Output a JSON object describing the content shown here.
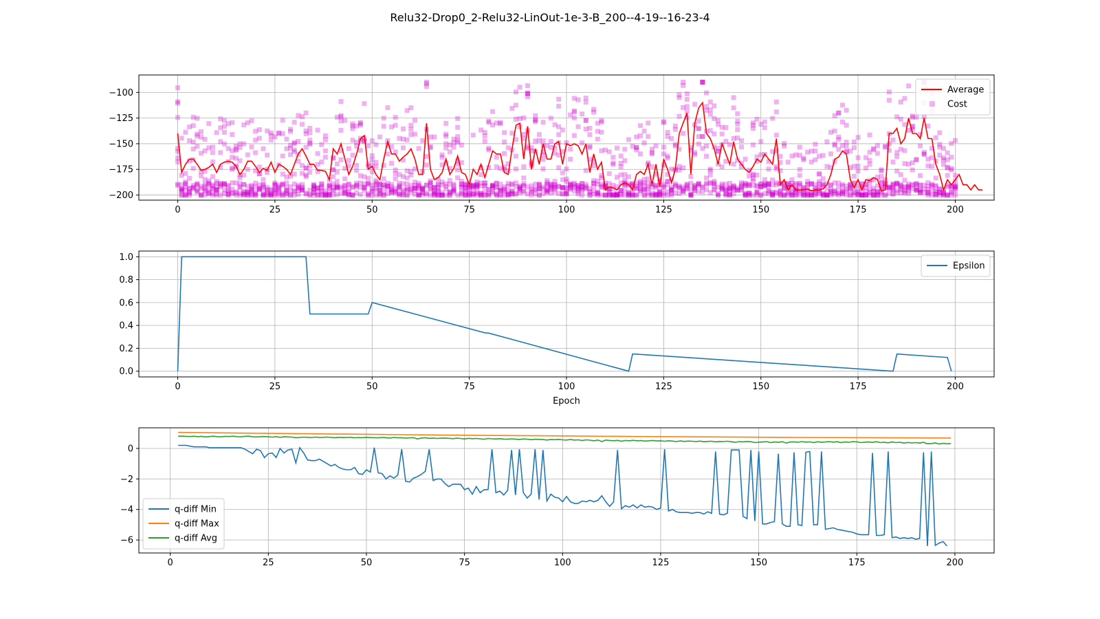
{
  "figure": {
    "title": "Relu32-Drop0_2-Relu32-LinOut-1e-3-B_200--4-19--16-23-4"
  },
  "chart_data": [
    {
      "type": "line",
      "id": "cost-panel",
      "xlim": [
        -10,
        210
      ],
      "ylim": [
        -205,
        -83
      ],
      "xticks": [
        0,
        25,
        50,
        75,
        100,
        125,
        150,
        175,
        200
      ],
      "yticks": [
        -100,
        -125,
        -150,
        -175,
        -200
      ],
      "xlabel": "",
      "ylabel": "",
      "grid": true,
      "legend_position": "top-right",
      "series": [
        {
          "name": "Average",
          "kind": "line",
          "color": "#ff0000",
          "x_start": 0,
          "x_step": 1,
          "values": [
            -140,
            -178,
            -170,
            -165,
            -165,
            -170,
            -176,
            -175,
            -173,
            -170,
            -178,
            -170,
            -168,
            -167,
            -168,
            -172,
            -180,
            -175,
            -167,
            -167,
            -172,
            -178,
            -174,
            -176,
            -168,
            -178,
            -170,
            -172,
            -175,
            -180,
            -170,
            -160,
            -155,
            -162,
            -170,
            -170,
            -176,
            -176,
            -177,
            -185,
            -155,
            -160,
            -150,
            -165,
            -180,
            -172,
            -160,
            -145,
            -142,
            -175,
            -172,
            -180,
            -185,
            -165,
            -148,
            -160,
            -160,
            -167,
            -163,
            -160,
            -155,
            -165,
            -180,
            -180,
            -130,
            -175,
            -185,
            -183,
            -178,
            -165,
            -180,
            -174,
            -162,
            -178,
            -180,
            -190,
            -175,
            -180,
            -170,
            -183,
            -170,
            -157,
            -160,
            -160,
            -178,
            -180,
            -155,
            -132,
            -130,
            -165,
            -133,
            -175,
            -155,
            -170,
            -150,
            -165,
            -165,
            -150,
            -148,
            -170,
            -150,
            -152,
            -150,
            -152,
            -160,
            -150,
            -178,
            -160,
            -175,
            -168,
            -195,
            -192,
            -193,
            -195,
            -190,
            -188,
            -190,
            -195,
            -180,
            -177,
            -180,
            -170,
            -190,
            -170,
            -192,
            -165,
            -175,
            -188,
            -175,
            -140,
            -130,
            -120,
            -180,
            -130,
            -115,
            -110,
            -140,
            -145,
            -155,
            -170,
            -150,
            -160,
            -170,
            -148,
            -165,
            -170,
            -175,
            -178,
            -172,
            -165,
            -168,
            -160,
            -165,
            -170,
            -145,
            -190,
            -185,
            -195,
            -190,
            -195,
            -195,
            -195,
            -194,
            -196,
            -195,
            -195,
            -194,
            -190,
            -180,
            -165,
            -163,
            -157,
            -160,
            -185,
            -193,
            -185,
            -195,
            -185,
            -186,
            -183,
            -185,
            -196,
            -195,
            -140,
            -140,
            -135,
            -150,
            -145,
            -125,
            -140,
            -140,
            -145,
            -125,
            -145,
            -145,
            -170,
            -180,
            -195,
            -185,
            -190,
            -185,
            -180,
            -190,
            -190,
            -195,
            -190,
            -195,
            -195
          ]
        },
        {
          "name": "Cost",
          "kind": "scatter",
          "color": "#cc00cc",
          "marker": "square",
          "alpha": 0.3,
          "per_epoch_min": -200,
          "per_epoch_max": -90
        }
      ]
    },
    {
      "type": "line",
      "id": "epsilon-panel",
      "xlim": [
        -10,
        210
      ],
      "ylim": [
        -0.05,
        1.05
      ],
      "xticks": [
        0,
        25,
        50,
        75,
        100,
        125,
        150,
        175,
        200
      ],
      "yticks": [
        0.0,
        0.2,
        0.4,
        0.6,
        0.8,
        1.0
      ],
      "ytick_labels": [
        "0.0",
        "0.2",
        "0.4",
        "0.6",
        "0.8",
        "1.0"
      ],
      "xlabel": "Epoch",
      "ylabel": "",
      "grid": true,
      "legend_position": "top-right",
      "series": [
        {
          "name": "Epsilon",
          "color": "#1f77b4",
          "points": [
            [
              0,
              0.0
            ],
            [
              1,
              1.0
            ],
            [
              33,
              1.0
            ],
            [
              34,
              0.5
            ],
            [
              49,
              0.5
            ],
            [
              50,
              0.6
            ],
            [
              79,
              0.335
            ],
            [
              80,
              0.333
            ],
            [
              116,
              0.0
            ],
            [
              117,
              0.15
            ],
            [
              118,
              0.149
            ],
            [
              184,
              0.0
            ],
            [
              185,
              0.15
            ],
            [
              198,
              0.12
            ],
            [
              199,
              0.0
            ]
          ]
        }
      ]
    },
    {
      "type": "line",
      "id": "qdiff-panel",
      "xlim": [
        -8,
        210
      ],
      "ylim": [
        -6.85,
        1.35
      ],
      "xticks": [
        0,
        25,
        50,
        75,
        100,
        125,
        150,
        175,
        200
      ],
      "yticks": [
        0,
        -2,
        -4,
        -6
      ],
      "xlabel": "",
      "ylabel": "",
      "grid": true,
      "legend_position": "bottom-left",
      "series": [
        {
          "name": "q-diff Min",
          "color": "#1f77b4",
          "x_start": 2,
          "x_step": 1,
          "values": [
            0.2,
            0.2,
            0.2,
            0.15,
            0.1,
            0.1,
            0.1,
            0.1,
            0.05,
            0.05,
            0.05,
            0.05,
            0.05,
            0.05,
            0.05,
            0.05,
            0.05,
            -0.05,
            -0.2,
            -0.35,
            -0.05,
            -0.15,
            -0.6,
            -0.35,
            -0.3,
            -0.6,
            0.0,
            -0.3,
            -0.1,
            -0.05,
            -0.95,
            0.05,
            -0.3,
            -0.75,
            -0.8,
            -0.8,
            -0.7,
            -0.85,
            -1.0,
            -1.15,
            -1.05,
            -1.25,
            -1.35,
            -1.4,
            -1.4,
            -1.25,
            -1.65,
            -1.7,
            -1.4,
            -1.55,
            0.05,
            -1.6,
            -1.65,
            -2.0,
            -1.8,
            -1.95,
            -1.75,
            -0.05,
            -2.15,
            -2.2,
            -1.95,
            -1.85,
            -1.7,
            -1.5,
            -0.05,
            -2.1,
            -2.0,
            -2.0,
            -2.3,
            -2.5,
            -2.35,
            -2.35,
            -2.35,
            -2.7,
            -2.6,
            -3.0,
            -2.5,
            -2.9,
            -2.7,
            -2.7,
            -0.05,
            -2.9,
            -2.8,
            -3.05,
            -2.75,
            -0.1,
            -3.05,
            -0.05,
            -2.9,
            -3.25,
            -3.0,
            -0.05,
            -3.35,
            -0.1,
            -3.45,
            -3.0,
            -3.2,
            -3.25,
            -3.5,
            -3.15,
            -3.5,
            -3.6,
            -3.6,
            -3.45,
            -3.5,
            -3.4,
            -3.5,
            -3.4,
            -3.1,
            -3.5,
            -3.8,
            -3.5,
            -0.1,
            -3.95,
            -3.75,
            -3.85,
            -3.7,
            -3.9,
            -3.7,
            -3.85,
            -3.8,
            -3.85,
            -4.0,
            -3.9,
            -0.05,
            -4.1,
            -4.0,
            -4.15,
            -4.2,
            -4.2,
            -4.2,
            -4.25,
            -4.2,
            -4.2,
            -4.3,
            -4.15,
            -4.25,
            -0.2,
            -4.3,
            -4.35,
            -4.25,
            -0.1,
            -0.1,
            -0.1,
            -4.45,
            -4.6,
            -0.1,
            -4.75,
            -0.2,
            -4.95,
            -4.95,
            -4.85,
            -4.8,
            -0.35,
            -4.95,
            -5.1,
            -5.1,
            -0.25,
            -5.0,
            -5.05,
            -0.25,
            -0.2,
            -5.0,
            -5.0,
            -0.2,
            -5.3,
            -5.25,
            -5.2,
            -5.3,
            -5.35,
            -5.4,
            -5.45,
            -5.5,
            -5.6,
            -5.65,
            -5.65,
            -5.65,
            -0.3,
            -5.7,
            -5.7,
            -5.65,
            -0.2,
            -5.85,
            -5.8,
            -5.9,
            -5.85,
            -5.9,
            -5.85,
            -5.95,
            -5.9,
            -0.25,
            -6.4,
            -0.2,
            -6.35,
            -6.2,
            -6.1,
            -6.4
          ]
        },
        {
          "name": "q-diff Max",
          "color": "#ff7f0e",
          "points": [
            [
              2,
              1.05
            ],
            [
              20,
              1.0
            ],
            [
              40,
              0.95
            ],
            [
              60,
              0.9
            ],
            [
              80,
              0.85
            ],
            [
              100,
              0.82
            ],
            [
              120,
              0.78
            ],
            [
              140,
              0.75
            ],
            [
              160,
              0.72
            ],
            [
              180,
              0.7
            ],
            [
              199,
              0.68
            ]
          ]
        },
        {
          "name": "q-diff Avg",
          "color": "#2ca02c",
          "x_start": 2,
          "x_step": 1,
          "values": [
            0.8,
            0.8,
            0.79,
            0.78,
            0.8,
            0.77,
            0.79,
            0.75,
            0.78,
            0.8,
            0.77,
            0.76,
            0.79,
            0.78,
            0.8,
            0.77,
            0.76,
            0.79,
            0.8,
            0.76,
            0.75,
            0.77,
            0.78,
            0.76,
            0.74,
            0.77,
            0.73,
            0.76,
            0.75,
            0.74,
            0.7,
            0.72,
            0.74,
            0.73,
            0.72,
            0.74,
            0.72,
            0.73,
            0.74,
            0.72,
            0.7,
            0.73,
            0.71,
            0.72,
            0.73,
            0.69,
            0.72,
            0.7,
            0.73,
            0.71,
            0.7,
            0.69,
            0.72,
            0.7,
            0.68,
            0.72,
            0.69,
            0.7,
            0.67,
            0.69,
            0.7,
            0.62,
            0.68,
            0.7,
            0.66,
            0.68,
            0.65,
            0.67,
            0.68,
            0.66,
            0.64,
            0.67,
            0.65,
            0.62,
            0.66,
            0.64,
            0.65,
            0.63,
            0.6,
            0.65,
            0.63,
            0.62,
            0.64,
            0.61,
            0.6,
            0.63,
            0.6,
            0.58,
            0.62,
            0.6,
            0.57,
            0.6,
            0.59,
            0.58,
            0.55,
            0.58,
            0.57,
            0.59,
            0.56,
            0.55,
            0.58,
            0.55,
            0.56,
            0.52,
            0.56,
            0.54,
            0.5,
            0.55,
            0.45,
            0.55,
            0.52,
            0.5,
            0.53,
            0.47,
            0.52,
            0.5,
            0.53,
            0.5,
            0.51,
            0.48,
            0.5,
            0.52,
            0.49,
            0.5,
            0.47,
            0.5,
            0.48,
            0.45,
            0.49,
            0.46,
            0.48,
            0.47,
            0.45,
            0.48,
            0.44,
            0.46,
            0.47,
            0.43,
            0.46,
            0.45,
            0.47,
            0.44,
            0.4,
            0.45,
            0.43,
            0.46,
            0.44,
            0.38,
            0.4,
            0.42,
            0.45,
            0.38,
            0.42,
            0.4,
            0.44,
            0.35,
            0.42,
            0.43,
            0.4,
            0.45,
            0.41,
            0.43,
            0.38,
            0.44,
            0.4,
            0.42,
            0.45,
            0.41,
            0.44,
            0.38,
            0.42,
            0.4,
            0.45,
            0.43,
            0.38,
            0.41,
            0.42,
            0.39,
            0.44,
            0.38,
            0.4,
            0.37,
            0.42,
            0.38,
            0.4,
            0.35,
            0.39,
            0.36,
            0.38,
            0.35,
            0.4,
            0.3,
            0.32,
            0.36,
            0.28,
            0.33,
            0.3,
            0.32
          ]
        }
      ]
    }
  ]
}
